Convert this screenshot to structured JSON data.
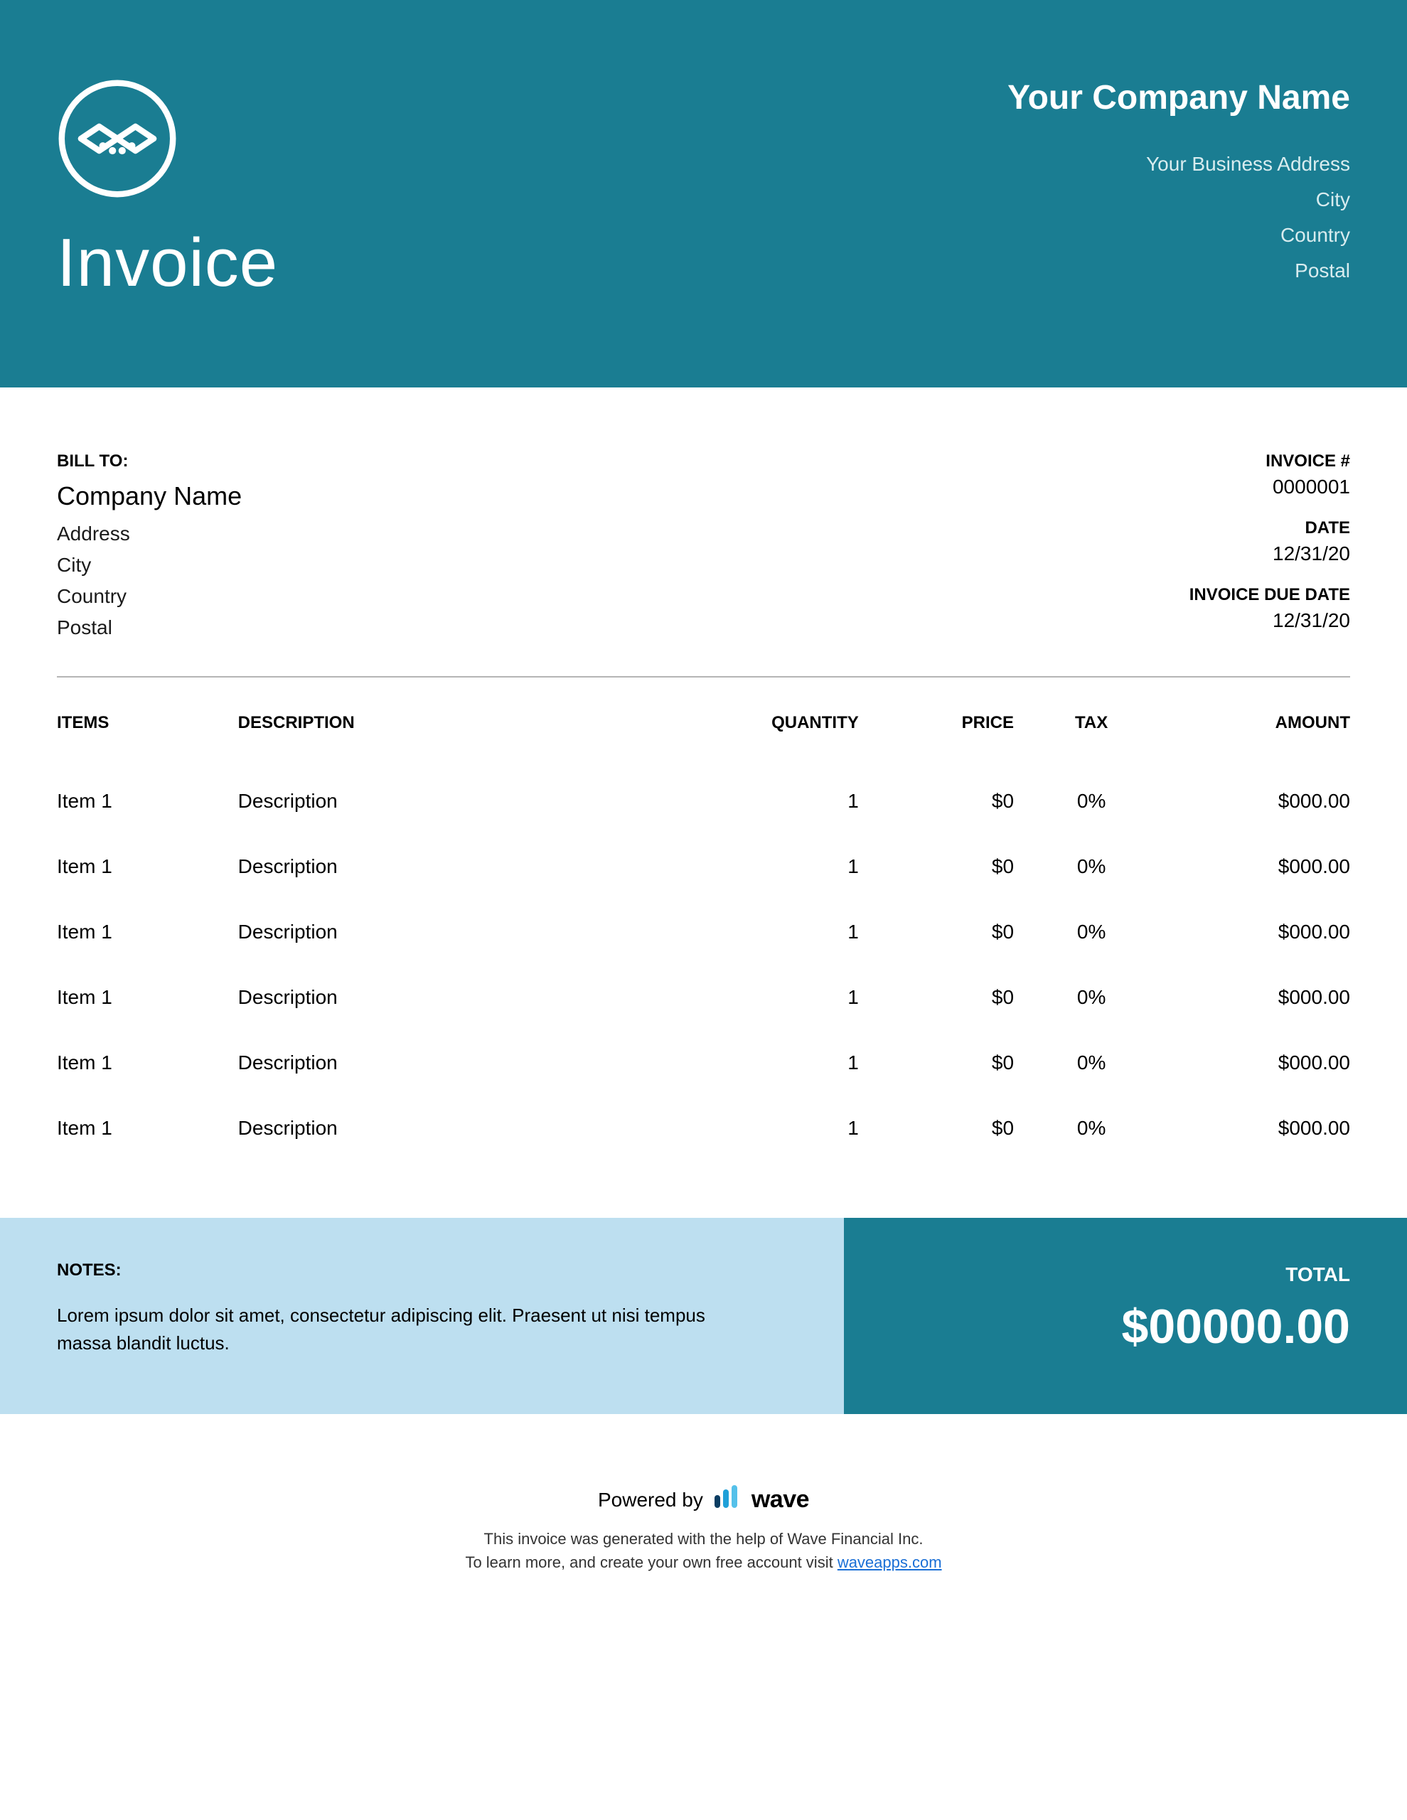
{
  "colors": {
    "header_bg": "#1a7d92",
    "notes_bg": "#bddff0",
    "total_bg": "#1a7d92",
    "text_light": "#ffffff",
    "divider": "#b5b5b5",
    "link": "#1a6fd6"
  },
  "header": {
    "title": "Invoice",
    "company_name": "Your Company Name",
    "address": "Your Business Address",
    "city": "City",
    "country": "Country",
    "postal": "Postal"
  },
  "bill_to": {
    "label": "BILL TO:",
    "company": "Company Name",
    "address": "Address",
    "city": "City",
    "country": "Country",
    "postal": "Postal"
  },
  "invoice_meta": {
    "number_label": "INVOICE #",
    "number": "0000001",
    "date_label": "DATE",
    "date": "12/31/20",
    "due_label": "INVOICE DUE DATE",
    "due": "12/31/20"
  },
  "table": {
    "headers": {
      "items": "ITEMS",
      "description": "DESCRIPTION",
      "quantity": "QUANTITY",
      "price": "PRICE",
      "tax": "TAX",
      "amount": "AMOUNT"
    },
    "rows": [
      {
        "item": "Item 1",
        "description": "Description",
        "quantity": "1",
        "price": "$0",
        "tax": "0%",
        "amount": "$000.00"
      },
      {
        "item": "Item 1",
        "description": "Description",
        "quantity": "1",
        "price": "$0",
        "tax": "0%",
        "amount": "$000.00"
      },
      {
        "item": "Item 1",
        "description": "Description",
        "quantity": "1",
        "price": "$0",
        "tax": "0%",
        "amount": "$000.00"
      },
      {
        "item": "Item 1",
        "description": "Description",
        "quantity": "1",
        "price": "$0",
        "tax": "0%",
        "amount": "$000.00"
      },
      {
        "item": "Item 1",
        "description": "Description",
        "quantity": "1",
        "price": "$0",
        "tax": "0%",
        "amount": "$000.00"
      },
      {
        "item": "Item 1",
        "description": "Description",
        "quantity": "1",
        "price": "$0",
        "tax": "0%",
        "amount": "$000.00"
      }
    ]
  },
  "notes": {
    "label": "NOTES:",
    "text": "Lorem ipsum dolor sit amet, consectetur adipiscing elit. Praesent ut nisi tempus massa blandit luctus."
  },
  "total": {
    "label": "TOTAL",
    "value": "$00000.00"
  },
  "powered": {
    "prefix": "Powered by",
    "brand": "wave",
    "line1": "This invoice was generated with the help of Wave Financial Inc.",
    "line2_prefix": "To learn more, and create your own free account visit ",
    "link_text": "waveapps.com"
  }
}
